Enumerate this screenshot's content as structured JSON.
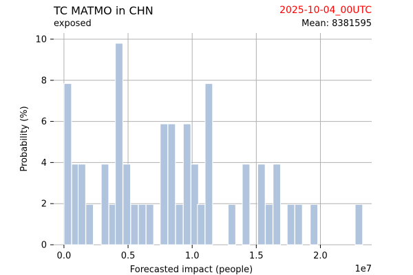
{
  "header": {
    "title": "TC MATMO in CHN",
    "subtitle": "exposed",
    "run_date": "2025-10-04_00UTC",
    "mean_text": "Mean: 8381595",
    "run_date_color": "#ff0000"
  },
  "chart_data": {
    "type": "bar",
    "xlabel": "Forecasted impact (people)",
    "ylabel": "Probability (%)",
    "x_offset_label": "1e7",
    "x_scale": 10000000,
    "xlim": [
      -0.08,
      2.4
    ],
    "ylim": [
      0,
      10.3
    ],
    "x_ticks": [
      0.0,
      0.5,
      1.0,
      1.5,
      2.0
    ],
    "x_tick_labels": [
      "0.0",
      "0.5",
      "1.0",
      "1.5",
      "2.0"
    ],
    "y_ticks": [
      0,
      2,
      4,
      6,
      8,
      10
    ],
    "y_tick_labels": [
      "0",
      "2",
      "4",
      "6",
      "8",
      "10"
    ],
    "grid": true,
    "bar_color": "#b0c4de",
    "bin_width": 0.058,
    "bars": [
      {
        "x": 0.03,
        "y": 7.84
      },
      {
        "x": 0.09,
        "y": 3.92
      },
      {
        "x": 0.14,
        "y": 3.92
      },
      {
        "x": 0.2,
        "y": 1.96
      },
      {
        "x": 0.32,
        "y": 3.92
      },
      {
        "x": 0.38,
        "y": 1.96
      },
      {
        "x": 0.43,
        "y": 9.8
      },
      {
        "x": 0.49,
        "y": 3.92
      },
      {
        "x": 0.55,
        "y": 1.96
      },
      {
        "x": 0.61,
        "y": 1.96
      },
      {
        "x": 0.67,
        "y": 1.96
      },
      {
        "x": 0.78,
        "y": 5.88
      },
      {
        "x": 0.84,
        "y": 5.88
      },
      {
        "x": 0.9,
        "y": 1.96
      },
      {
        "x": 0.96,
        "y": 5.88
      },
      {
        "x": 1.02,
        "y": 3.92
      },
      {
        "x": 1.07,
        "y": 1.96
      },
      {
        "x": 1.13,
        "y": 7.84
      },
      {
        "x": 1.31,
        "y": 1.96
      },
      {
        "x": 1.42,
        "y": 3.92
      },
      {
        "x": 1.54,
        "y": 3.92
      },
      {
        "x": 1.6,
        "y": 1.96
      },
      {
        "x": 1.66,
        "y": 3.92
      },
      {
        "x": 1.77,
        "y": 1.96
      },
      {
        "x": 1.83,
        "y": 1.96
      },
      {
        "x": 1.95,
        "y": 1.96
      },
      {
        "x": 2.3,
        "y": 1.96
      }
    ]
  }
}
